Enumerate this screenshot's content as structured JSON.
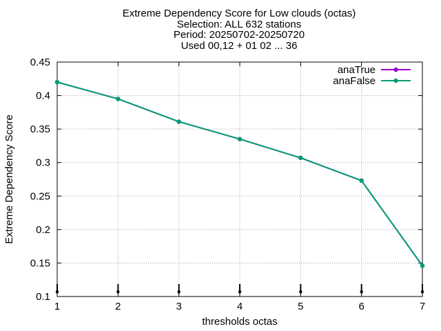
{
  "chart_data": {
    "type": "line",
    "title_lines": [
      "Extreme Dependency Score  for Low clouds (octas)",
      "Selection: ALL    632 stations",
      "Period: 20250702-20250720",
      "Used 00,12 + 01 02 ... 36"
    ],
    "xlabel": "thresholds octas",
    "ylabel": "Extreme Dependency Score",
    "xlim": [
      1,
      7
    ],
    "ylim": [
      0.1,
      0.45
    ],
    "x_ticks": [
      "1",
      "2",
      "3",
      "4",
      "5",
      "6",
      "7"
    ],
    "y_ticks": [
      "0.1",
      "0.15",
      "0.2",
      "0.25",
      "0.3",
      "0.35",
      "0.4",
      "0.45"
    ],
    "grid": true,
    "legend_position": "top-right",
    "x": [
      1,
      2,
      3,
      4,
      5,
      6,
      7
    ],
    "series": [
      {
        "name": "anaTrue",
        "color": "#9400d3",
        "values": [
          0.42,
          0.395,
          0.361,
          0.335,
          0.307,
          0.273,
          0.146
        ]
      },
      {
        "name": "anaFalse",
        "color": "#009e73",
        "values": [
          0.42,
          0.395,
          0.361,
          0.335,
          0.307,
          0.273,
          0.146
        ]
      }
    ]
  }
}
